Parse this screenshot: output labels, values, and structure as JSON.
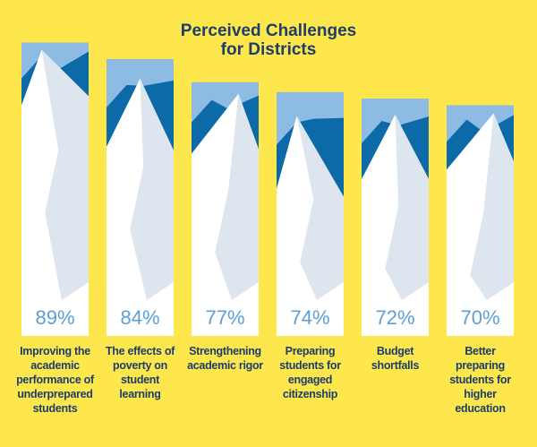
{
  "chart_data": {
    "type": "bar",
    "title": "Perceived Challenges for Districts",
    "categories": [
      "Improving the academic performance of underprepared students",
      "The effects of poverty on student learning",
      "Strengthening academic rigor",
      "Preparing students for engaged citizenship",
      "Budget shortfalls",
      "Better preparing students for higher education"
    ],
    "values": [
      89,
      84,
      77,
      74,
      72,
      70
    ],
    "value_labels": [
      "89%",
      "84%",
      "77%",
      "74%",
      "72%",
      "70%"
    ],
    "color": "#8dbbe3",
    "label_color": "#5b9fd6",
    "background": "#fde74c"
  }
}
